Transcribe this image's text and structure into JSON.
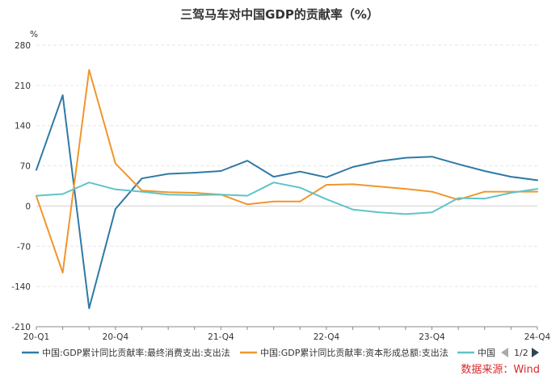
{
  "chart_data": {
    "type": "line",
    "title": "三驾马车对中国GDP的贡献率（%）",
    "ylabel": "%",
    "xlabel": "",
    "ylim": [
      -210,
      280
    ],
    "yticks": [
      -210,
      -140,
      -70,
      0,
      70,
      140,
      210,
      280
    ],
    "categories": [
      "20-Q1",
      "20-Q2",
      "20-Q3",
      "20-Q4",
      "21-Q1",
      "21-Q2",
      "21-Q3",
      "21-Q4",
      "22-Q1",
      "22-Q2",
      "22-Q3",
      "22-Q4",
      "23-Q1",
      "23-Q2",
      "23-Q3",
      "23-Q4",
      "24-Q1",
      "24-Q2",
      "24-Q3",
      "24-Q4"
    ],
    "xtick_labels": [
      "20-Q1",
      "20-Q4",
      "21-Q4",
      "22-Q4",
      "23-Q4",
      "24-Q4"
    ],
    "series": [
      {
        "name": "中国:GDP累计同比贡献率:最终消费支出:支出法",
        "color": "#2e7aa5",
        "values": [
          63,
          193,
          -178,
          -5,
          48,
          56,
          58,
          61,
          79,
          51,
          60,
          50,
          68,
          78,
          84,
          86,
          73,
          61,
          51,
          45
        ]
      },
      {
        "name": "中国:GDP累计同比贡献率:资本形成总额:支出法",
        "color": "#f0962c",
        "values": [
          17,
          -116,
          237,
          74,
          27,
          24,
          23,
          20,
          3,
          8,
          8,
          37,
          38,
          34,
          30,
          25,
          11,
          25,
          25,
          25
        ]
      },
      {
        "name": "中国",
        "color": "#5fc4c8",
        "values": [
          18,
          21,
          41,
          29,
          25,
          20,
          19,
          20,
          18,
          41,
          32,
          12,
          -6,
          -11,
          -14,
          -11,
          14,
          13,
          23,
          30
        ]
      }
    ],
    "legend": {
      "position": "bottom",
      "page_indicator": "1/2"
    }
  },
  "source": {
    "text": "数据来源：Wind",
    "color": "#d9292c"
  }
}
